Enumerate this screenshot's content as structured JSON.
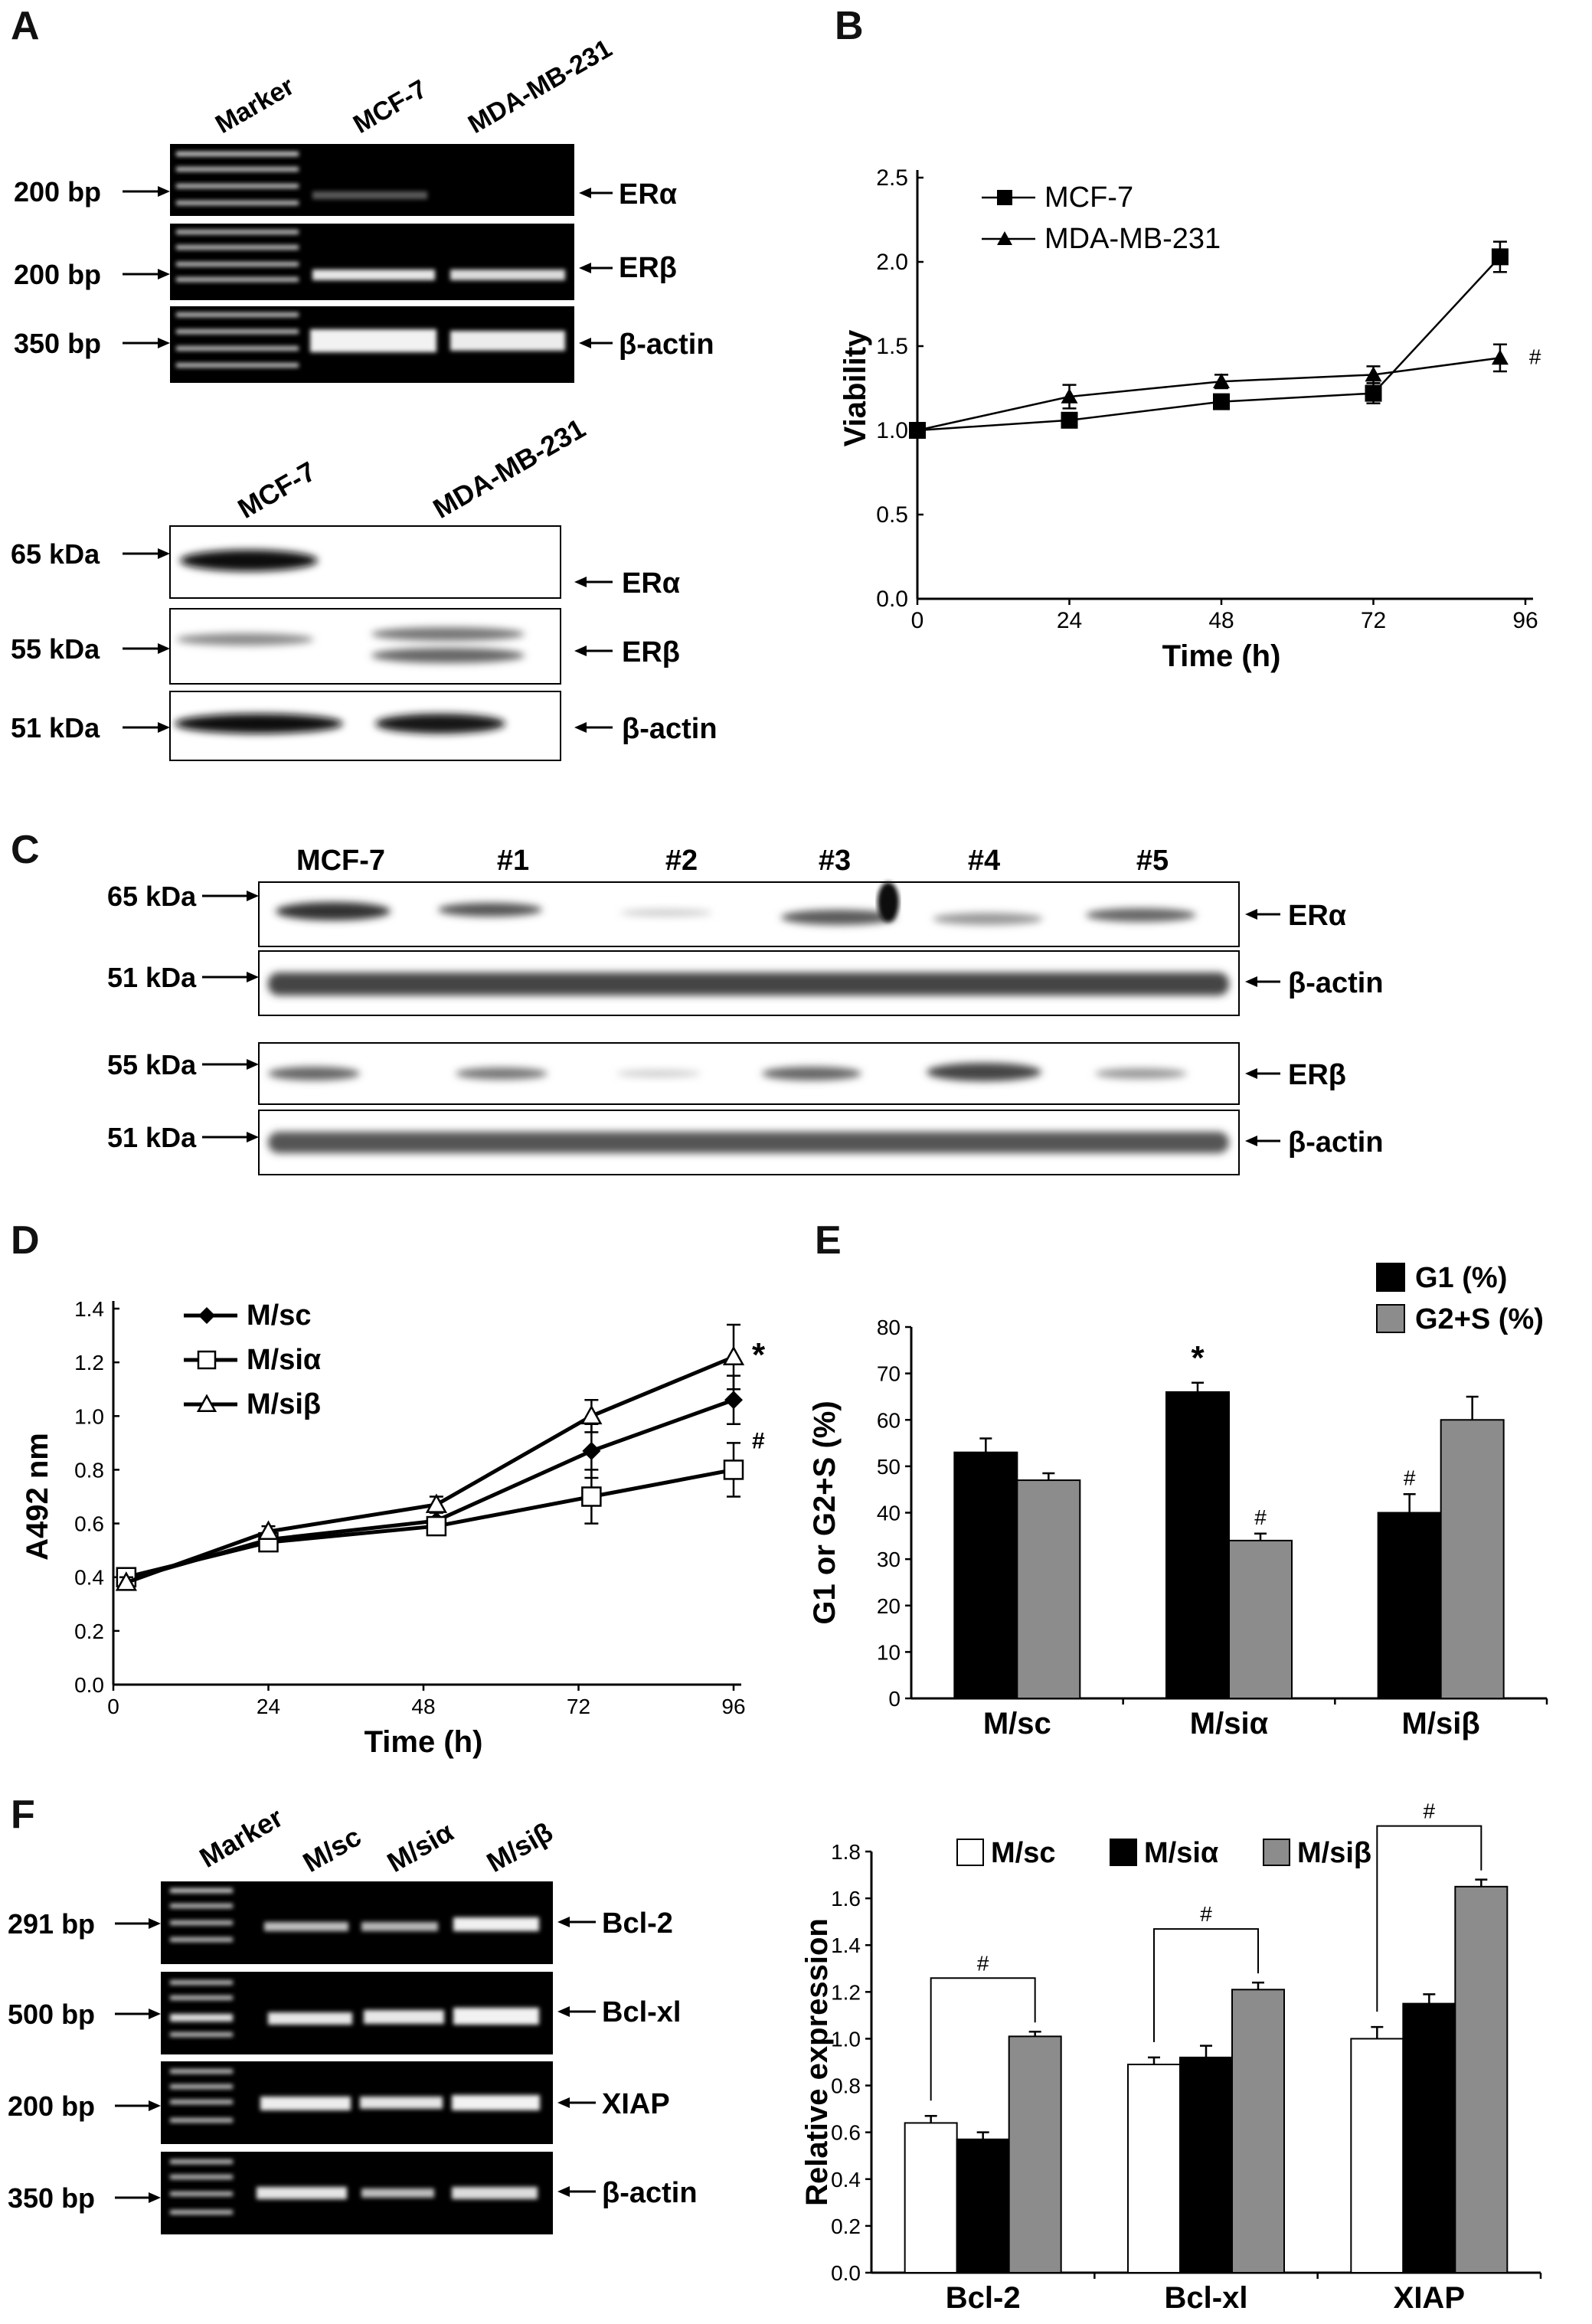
{
  "panels": {
    "A": {
      "letter": "A",
      "gel": {
        "lanes": [
          "Marker",
          "MCF-7",
          "MDA-MB-231"
        ],
        "sizes": [
          "200 bp",
          "200 bp",
          "350 bp"
        ],
        "bands": [
          "ERα",
          "ERβ",
          "β-actin"
        ]
      },
      "blot": {
        "lanes": [
          "MCF-7",
          "MDA-MB-231"
        ],
        "sizes": [
          "65 kDa",
          "55 kDa",
          "51 kDa"
        ],
        "bands": [
          "ERα",
          "ERβ",
          "β-actin"
        ]
      }
    },
    "B": {
      "letter": "B",
      "annotation": "#"
    },
    "C": {
      "letter": "C",
      "lanes": [
        "MCF-7",
        "#1",
        "#2",
        "#3",
        "#4",
        "#5"
      ],
      "sizes": [
        "65 kDa",
        "51 kDa",
        "55 kDa",
        "51 kDa"
      ],
      "bands": [
        "ERα",
        "β-actin",
        "ERβ",
        "β-actin"
      ]
    },
    "D": {
      "letter": "D",
      "annotations": [
        "*",
        "#"
      ]
    },
    "E": {
      "letter": "E",
      "annotations": [
        "*",
        "#",
        "#"
      ]
    },
    "F": {
      "letter": "F",
      "gel": {
        "lanes": [
          "Marker",
          "M/sc",
          "M/siα",
          "M/siβ"
        ],
        "sizes": [
          "291 bp",
          "500 bp",
          "200 bp",
          "350 bp"
        ],
        "bands": [
          "Bcl-2",
          "Bcl-xl",
          "XIAP",
          "β-actin"
        ]
      },
      "annotations": [
        "#",
        "#",
        "#"
      ]
    }
  },
  "chart_data": [
    {
      "id": "B",
      "type": "line",
      "xlabel": "Time (h)",
      "ylabel": "Viability",
      "xlim": [
        0,
        96
      ],
      "ylim": [
        0.0,
        2.5
      ],
      "xticks": [
        "0",
        "24",
        "48",
        "72",
        "96"
      ],
      "yticks": [
        "0.0",
        "0.5",
        "1.0",
        "1.5",
        "2.0",
        "2.5"
      ],
      "legend_position": "top-left",
      "series": [
        {
          "name": "MCF-7",
          "x": [
            0,
            24,
            48,
            72,
            92
          ],
          "y": [
            1.0,
            1.06,
            1.17,
            1.22,
            2.03
          ],
          "err": [
            0.01,
            0.04,
            0.04,
            0.06,
            0.09
          ],
          "marker": "square"
        },
        {
          "name": "MDA-MB-231",
          "x": [
            0,
            24,
            48,
            72,
            92
          ],
          "y": [
            1.0,
            1.2,
            1.29,
            1.33,
            1.43
          ],
          "err": [
            0.01,
            0.07,
            0.04,
            0.05,
            0.08
          ],
          "marker": "triangle"
        }
      ]
    },
    {
      "id": "D",
      "type": "line",
      "xlabel": "Time (h)",
      "ylabel": "A492 nm",
      "xlim": [
        0,
        96
      ],
      "ylim": [
        0.0,
        1.4
      ],
      "xticks": [
        "0",
        "24",
        "48",
        "72",
        "96"
      ],
      "yticks": [
        "0.0",
        "0.2",
        "0.4",
        "0.6",
        "0.8",
        "1.0",
        "1.2",
        "1.4"
      ],
      "legend_position": "top-left",
      "series": [
        {
          "name": "M/sc",
          "x": [
            2,
            24,
            50,
            74,
            96
          ],
          "y": [
            0.39,
            0.54,
            0.61,
            0.87,
            1.06
          ],
          "err": [
            0.02,
            0.02,
            0.03,
            0.1,
            0.09
          ],
          "marker": "diamond"
        },
        {
          "name": "M/siα",
          "x": [
            2,
            24,
            50,
            74,
            96
          ],
          "y": [
            0.4,
            0.53,
            0.59,
            0.7,
            0.8
          ],
          "err": [
            0.03,
            0.03,
            0.03,
            0.1,
            0.1
          ],
          "marker": "open-square"
        },
        {
          "name": "M/siβ",
          "x": [
            2,
            24,
            50,
            74,
            96
          ],
          "y": [
            0.38,
            0.57,
            0.67,
            1.0,
            1.22
          ],
          "err": [
            0.02,
            0.02,
            0.03,
            0.06,
            0.12
          ],
          "marker": "open-triangle"
        }
      ]
    },
    {
      "id": "E",
      "type": "bar",
      "categories": [
        "M/sc",
        "M/siα",
        "M/siβ"
      ],
      "ylabel": "G1 or G2+S (%)",
      "ylim": [
        0,
        80
      ],
      "yticks": [
        "0",
        "10",
        "20",
        "30",
        "40",
        "50",
        "60",
        "70",
        "80"
      ],
      "legend_position": "top-right",
      "series": [
        {
          "name": "G1 (%)",
          "values": [
            53,
            66,
            40
          ],
          "err": [
            3,
            2,
            4
          ],
          "color": "#000000"
        },
        {
          "name": "G2+S (%)",
          "values": [
            47,
            34,
            60
          ],
          "err": [
            1.5,
            1.5,
            5
          ],
          "color": "#8c8c8c"
        }
      ]
    },
    {
      "id": "F",
      "type": "bar",
      "categories": [
        "Bcl-2",
        "Bcl-xl",
        "XIAP"
      ],
      "ylabel": "Relative expression",
      "ylim": [
        0.0,
        1.8
      ],
      "yticks": [
        "0.0",
        "0.2",
        "0.4",
        "0.6",
        "0.8",
        "1.0",
        "1.2",
        "1.4",
        "1.6",
        "1.8"
      ],
      "legend_position": "top",
      "series": [
        {
          "name": "M/sc",
          "values": [
            0.64,
            0.89,
            1.0
          ],
          "err": [
            0.03,
            0.03,
            0.05
          ],
          "color": "#ffffff"
        },
        {
          "name": "M/siα",
          "values": [
            0.57,
            0.92,
            1.15
          ],
          "err": [
            0.03,
            0.05,
            0.04
          ],
          "color": "#000000"
        },
        {
          "name": "M/siβ",
          "values": [
            1.01,
            1.21,
            1.65
          ],
          "err": [
            0.02,
            0.03,
            0.03
          ],
          "color": "#8c8c8c"
        }
      ]
    }
  ]
}
